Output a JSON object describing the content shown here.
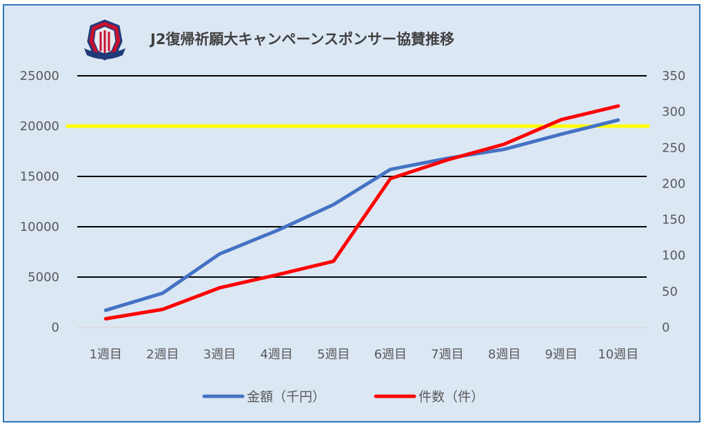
{
  "chart_data": {
    "type": "line",
    "title": "J2復帰祈願大キャンペーンスポンサー協賛推移",
    "categories": [
      "1週目",
      "2週目",
      "3週目",
      "4週目",
      "5週目",
      "6週目",
      "7週目",
      "8週目",
      "9週目",
      "10週目"
    ],
    "series": [
      {
        "name": "金額（千円）",
        "axis": "left",
        "color": "#4472c4",
        "values": [
          1700,
          3400,
          7300,
          9600,
          12200,
          15700,
          16800,
          17700,
          19200,
          20600
        ]
      },
      {
        "name": "件数（件）",
        "axis": "right",
        "color": "#ff0000",
        "values": [
          12,
          25,
          55,
          73,
          92,
          207,
          233,
          255,
          289,
          308
        ]
      }
    ],
    "reference_line": {
      "axis": "left",
      "value": 20000,
      "color": "#ffff00"
    },
    "y_left": {
      "min": 0,
      "max": 25000,
      "ticks": [
        "0",
        "5000",
        "10000",
        "15000",
        "20000",
        "25000"
      ]
    },
    "y_right": {
      "min": 0,
      "max": 350,
      "ticks": [
        "0",
        "50",
        "100",
        "150",
        "200",
        "250",
        "300",
        "350"
      ]
    },
    "grid": true,
    "legend_position": "bottom",
    "logo": "club-crest"
  }
}
